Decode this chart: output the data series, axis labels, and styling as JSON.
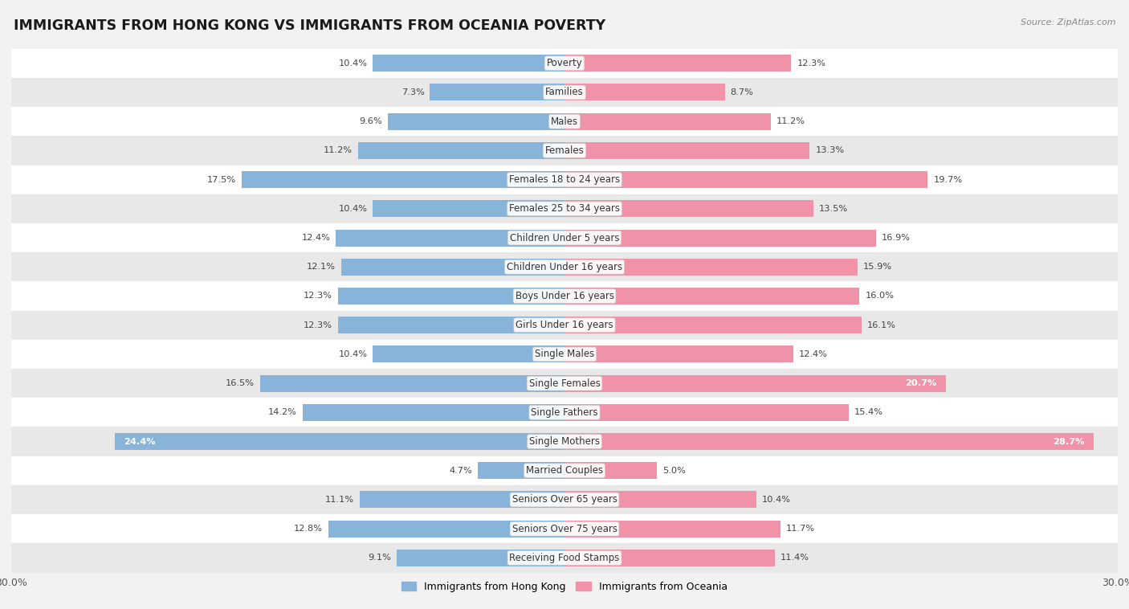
{
  "title": "IMMIGRANTS FROM HONG KONG VS IMMIGRANTS FROM OCEANIA POVERTY",
  "source": "Source: ZipAtlas.com",
  "categories": [
    "Poverty",
    "Families",
    "Males",
    "Females",
    "Females 18 to 24 years",
    "Females 25 to 34 years",
    "Children Under 5 years",
    "Children Under 16 years",
    "Boys Under 16 years",
    "Girls Under 16 years",
    "Single Males",
    "Single Females",
    "Single Fathers",
    "Single Mothers",
    "Married Couples",
    "Seniors Over 65 years",
    "Seniors Over 75 years",
    "Receiving Food Stamps"
  ],
  "hong_kong_values": [
    10.4,
    7.3,
    9.6,
    11.2,
    17.5,
    10.4,
    12.4,
    12.1,
    12.3,
    12.3,
    10.4,
    16.5,
    14.2,
    24.4,
    4.7,
    11.1,
    12.8,
    9.1
  ],
  "oceania_values": [
    12.3,
    8.7,
    11.2,
    13.3,
    19.7,
    13.5,
    16.9,
    15.9,
    16.0,
    16.1,
    12.4,
    20.7,
    15.4,
    28.7,
    5.0,
    10.4,
    11.7,
    11.4
  ],
  "hong_kong_color": "#89b4d9",
  "oceania_color": "#f093a8",
  "row_color_light": "#ffffff",
  "row_color_dark": "#e8e8e8",
  "max_value": 30.0,
  "legend_hk": "Immigrants from Hong Kong",
  "legend_oceania": "Immigrants from Oceania",
  "bar_height": 0.58,
  "title_fontsize": 12.5,
  "label_fontsize": 8.5,
  "value_fontsize": 8.2,
  "fig_bg": "#f2f2f2"
}
